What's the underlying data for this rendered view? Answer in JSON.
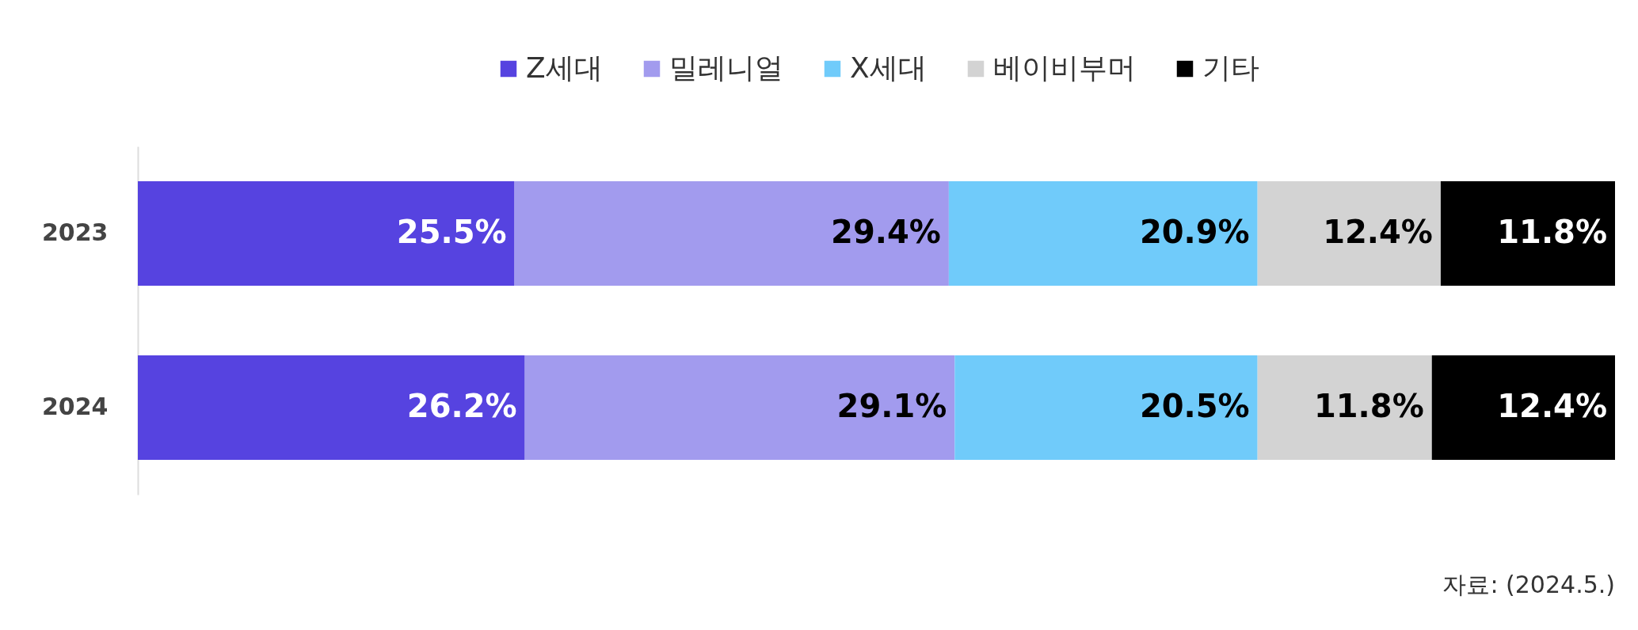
{
  "chart_data": {
    "type": "bar",
    "orientation": "horizontal",
    "stacked": true,
    "categories": [
      "2023",
      "2024"
    ],
    "series": [
      {
        "name": "Z세대",
        "color": "#5643e0",
        "values": [
          25.5,
          26.2
        ],
        "value_labels": [
          "25.5%",
          "26.2%"
        ]
      },
      {
        "name": "밀레니얼",
        "color": "#a29bee",
        "values": [
          29.4,
          29.1
        ],
        "value_labels": [
          "29.4%",
          "29.1%"
        ]
      },
      {
        "name": "X세대",
        "color": "#70cbfa",
        "values": [
          20.9,
          20.5
        ],
        "value_labels": [
          "20.9%",
          "20.5%"
        ]
      },
      {
        "name": "베이비부머",
        "color": "#d3d3d3",
        "values": [
          12.4,
          11.8
        ],
        "value_labels": [
          "12.4%",
          "11.8%"
        ]
      },
      {
        "name": "기타",
        "color": "#000000",
        "values": [
          11.8,
          12.4
        ],
        "value_labels": [
          "11.8%",
          "12.4%"
        ]
      }
    ],
    "legend": "top",
    "annotations": [
      "자료: (2024.5.)"
    ]
  }
}
